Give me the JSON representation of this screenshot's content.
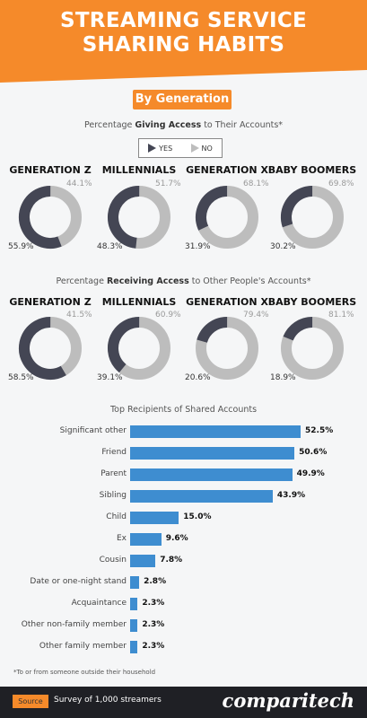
{
  "header": {
    "title_line1": "STREAMING SERVICE",
    "title_line2": "SHARING HABITS"
  },
  "section_badge": "By Generation",
  "giving": {
    "subtitle_prefix": "Percentage ",
    "subtitle_bold": "Giving Access",
    "subtitle_suffix": " to Their Accounts*"
  },
  "receiving": {
    "subtitle_prefix": "Percentage ",
    "subtitle_bold": "Receiving Access",
    "subtitle_suffix": " to Other People's Accounts*"
  },
  "legend": {
    "yes": "YES",
    "no": "NO"
  },
  "colors": {
    "yes": "#444654",
    "no": "#bdbdbd",
    "bar": "#3e8dd0",
    "accent": "#f58a2a",
    "footer": "#1f2025"
  },
  "bars_title": "Top Recipients of Shared Accounts",
  "footnote": "*To or from someone outside their household",
  "footer": {
    "source_label": "Source",
    "source_text": "Survey of 1,000 streamers",
    "logo": "comparitech"
  },
  "chart_data": [
    {
      "type": "pie",
      "title": "Percentage Giving Access to Their Accounts*",
      "categories": [
        "GENERATION Z",
        "MILLENNIALS",
        "GENERATION X",
        "BABY BOOMERS"
      ],
      "series": [
        {
          "name": "YES",
          "values": [
            55.9,
            48.3,
            31.9,
            30.2
          ],
          "labels": [
            "55.9%",
            "48.3%",
            "31.9%",
            "30.2%"
          ]
        },
        {
          "name": "NO",
          "values": [
            44.1,
            51.7,
            68.1,
            69.8
          ],
          "labels": [
            "44.1%",
            "51.7%",
            "68.1%",
            "69.8%"
          ]
        }
      ]
    },
    {
      "type": "pie",
      "title": "Percentage Receiving Access to Other People's Accounts*",
      "categories": [
        "GENERATION Z",
        "MILLENNIALS",
        "GENERATION X",
        "BABY BOOMERS"
      ],
      "series": [
        {
          "name": "YES",
          "values": [
            58.5,
            39.1,
            20.6,
            18.9
          ],
          "labels": [
            "58.5%",
            "39.1%",
            "20.6%",
            "18.9%"
          ]
        },
        {
          "name": "NO",
          "values": [
            41.5,
            60.9,
            79.4,
            81.1
          ],
          "labels": [
            "41.5%",
            "60.9%",
            "79.4%",
            "81.1%"
          ]
        }
      ]
    },
    {
      "type": "bar",
      "title": "Top Recipients of Shared Accounts",
      "categories": [
        "Significant other",
        "Friend",
        "Parent",
        "Sibling",
        "Child",
        "Ex",
        "Cousin",
        "Date or one-night stand",
        "Acquaintance",
        "Other non-family member",
        "Other family member"
      ],
      "values": [
        52.5,
        50.6,
        49.9,
        43.9,
        15.0,
        9.6,
        7.8,
        2.8,
        2.3,
        2.3,
        2.3
      ],
      "value_labels": [
        "52.5%",
        "50.6%",
        "49.9%",
        "43.9%",
        "15.0%",
        "9.6%",
        "7.8%",
        "2.8%",
        "2.3%",
        "2.3%",
        "2.3%"
      ]
    }
  ]
}
